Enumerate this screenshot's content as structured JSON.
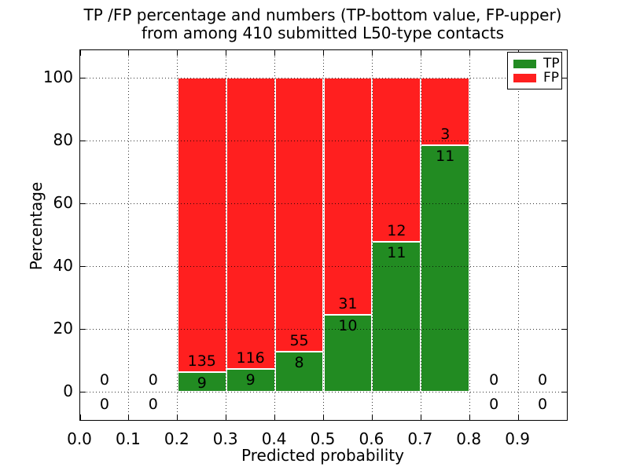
{
  "title": {
    "line1": "TP /FP percentage and numbers (TP-bottom value, FP-upper)",
    "line2": "from among 410 submitted L50-type contacts"
  },
  "axes": {
    "xlabel": "Predicted probability",
    "ylabel": "Percentage",
    "xlim": [
      0.0,
      1.0
    ],
    "ylim": [
      -10,
      110
    ],
    "grid": "dotted",
    "xticks": [
      {
        "label": "0.0",
        "value": 0.0
      },
      {
        "label": "0.1",
        "value": 0.1
      },
      {
        "label": "0.2",
        "value": 0.2
      },
      {
        "label": "0.3",
        "value": 0.3
      },
      {
        "label": "0.4",
        "value": 0.4
      },
      {
        "label": "0.5",
        "value": 0.5
      },
      {
        "label": "0.6",
        "value": 0.6
      },
      {
        "label": "0.7",
        "value": 0.7
      },
      {
        "label": "0.8",
        "value": 0.8
      },
      {
        "label": "0.9",
        "value": 0.9
      }
    ],
    "yticks": [
      {
        "label": "0",
        "value": 0
      },
      {
        "label": "20",
        "value": 20
      },
      {
        "label": "40",
        "value": 40
      },
      {
        "label": "60",
        "value": 60
      },
      {
        "label": "80",
        "value": 80
      },
      {
        "label": "100",
        "value": 100
      }
    ]
  },
  "legend": {
    "position": "upper-right",
    "items": [
      {
        "label": "TP",
        "color": "#228b22"
      },
      {
        "label": "FP",
        "color": "#ff1f1f"
      }
    ]
  },
  "colors": {
    "tp": "#228b22",
    "fp": "#ff1f1f",
    "background": "#ffffff",
    "frame": "#000000",
    "bar_edge": "#ffffff"
  },
  "chart_data": {
    "type": "bar",
    "stacked": true,
    "note": "Each 0.1-wide bin stacked to 100%: TP percentage bottom (green), FP top (red); numeric labels are raw counts (TP bottom value, FP upper value); empty bins show 0 / 0.",
    "total_contacts": 410,
    "series": [
      {
        "name": "TP",
        "color": "#228b22"
      },
      {
        "name": "FP",
        "color": "#ff1f1f"
      }
    ],
    "bins": [
      {
        "range": [
          0.0,
          0.1
        ],
        "tp": 0,
        "fp": 0
      },
      {
        "range": [
          0.1,
          0.2
        ],
        "tp": 0,
        "fp": 0
      },
      {
        "range": [
          0.2,
          0.3
        ],
        "tp": 9,
        "fp": 135
      },
      {
        "range": [
          0.3,
          0.4
        ],
        "tp": 9,
        "fp": 116
      },
      {
        "range": [
          0.4,
          0.5
        ],
        "tp": 8,
        "fp": 55
      },
      {
        "range": [
          0.5,
          0.6
        ],
        "tp": 10,
        "fp": 31
      },
      {
        "range": [
          0.6,
          0.7
        ],
        "tp": 11,
        "fp": 12
      },
      {
        "range": [
          0.7,
          0.8
        ],
        "tp": 11,
        "fp": 3
      },
      {
        "range": [
          0.8,
          0.9
        ],
        "tp": 0,
        "fp": 0
      },
      {
        "range": [
          0.9,
          1.0
        ],
        "tp": 0,
        "fp": 0
      }
    ]
  }
}
